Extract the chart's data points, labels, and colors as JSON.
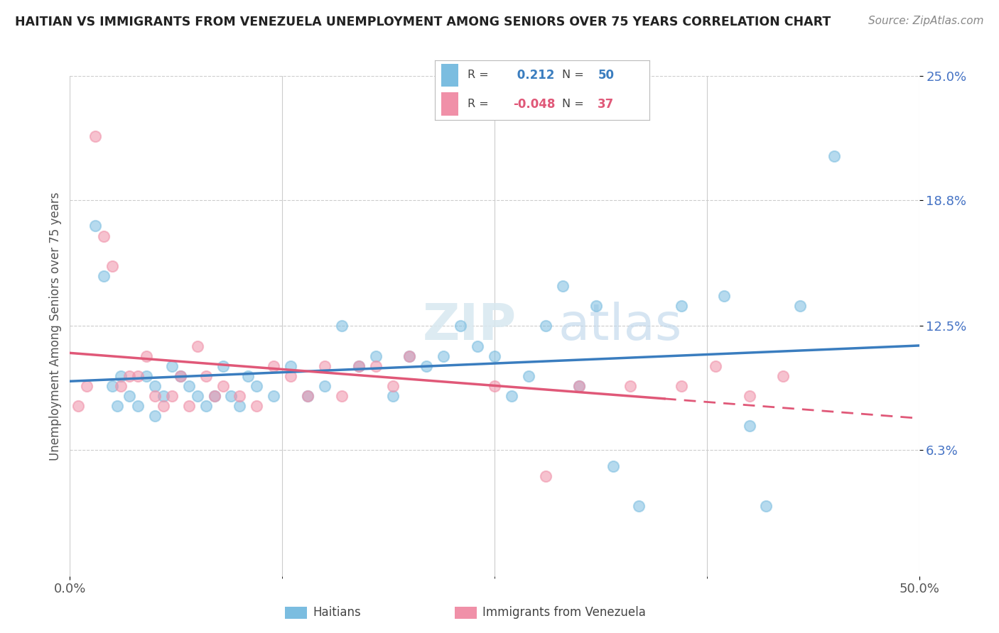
{
  "title": "HAITIAN VS IMMIGRANTS FROM VENEZUELA UNEMPLOYMENT AMONG SENIORS OVER 75 YEARS CORRELATION CHART",
  "source": "Source: ZipAtlas.com",
  "ylabel": "Unemployment Among Seniors over 75 years",
  "xlim": [
    0.0,
    50.0
  ],
  "ylim": [
    0.0,
    25.0
  ],
  "yticks": [
    6.3,
    12.5,
    18.8,
    25.0
  ],
  "ytick_labels": [
    "6.3%",
    "12.5%",
    "18.8%",
    "25.0%"
  ],
  "xticks": [
    0.0,
    50.0
  ],
  "xtick_labels": [
    "0.0%",
    "50.0%"
  ],
  "haitians_R": 0.212,
  "haitians_N": 50,
  "venezuela_R": -0.048,
  "venezuela_N": 37,
  "color_haitians": "#7bbde0",
  "color_venezuela": "#f090a8",
  "trend_color_haitians": "#3a7dbf",
  "trend_color_venezuela": "#e05878",
  "watermark": "ZIPatlas",
  "haitians_x": [
    1.5,
    2.0,
    2.5,
    2.8,
    3.0,
    3.5,
    4.0,
    4.5,
    5.0,
    5.0,
    5.5,
    6.0,
    6.5,
    7.0,
    7.5,
    8.0,
    8.5,
    9.0,
    9.5,
    10.0,
    10.5,
    11.0,
    12.0,
    13.0,
    14.0,
    15.0,
    16.0,
    17.0,
    18.0,
    19.0,
    20.0,
    21.0,
    22.0,
    23.0,
    24.0,
    25.0,
    26.0,
    27.0,
    28.0,
    29.0,
    30.0,
    31.0,
    32.0,
    33.5,
    36.0,
    38.5,
    40.0,
    41.0,
    43.0,
    45.0
  ],
  "haitians_y": [
    17.5,
    15.0,
    9.5,
    8.5,
    10.0,
    9.0,
    8.5,
    10.0,
    9.5,
    8.0,
    9.0,
    10.5,
    10.0,
    9.5,
    9.0,
    8.5,
    9.0,
    10.5,
    9.0,
    8.5,
    10.0,
    9.5,
    9.0,
    10.5,
    9.0,
    9.5,
    12.5,
    10.5,
    11.0,
    9.0,
    11.0,
    10.5,
    11.0,
    12.5,
    11.5,
    11.0,
    9.0,
    10.0,
    12.5,
    14.5,
    9.5,
    13.5,
    5.5,
    3.5,
    13.5,
    14.0,
    7.5,
    3.5,
    13.5,
    21.0
  ],
  "venezuela_x": [
    0.5,
    1.0,
    1.5,
    2.0,
    2.5,
    3.0,
    3.5,
    4.0,
    4.5,
    5.0,
    5.5,
    6.0,
    6.5,
    7.0,
    7.5,
    8.0,
    8.5,
    9.0,
    10.0,
    11.0,
    12.0,
    13.0,
    14.0,
    15.0,
    16.0,
    17.0,
    18.0,
    19.0,
    20.0,
    25.0,
    28.0,
    30.0,
    33.0,
    36.0,
    38.0,
    40.0,
    42.0
  ],
  "venezuela_y": [
    8.5,
    9.5,
    22.0,
    17.0,
    15.5,
    9.5,
    10.0,
    10.0,
    11.0,
    9.0,
    8.5,
    9.0,
    10.0,
    8.5,
    11.5,
    10.0,
    9.0,
    9.5,
    9.0,
    8.5,
    10.5,
    10.0,
    9.0,
    10.5,
    9.0,
    10.5,
    10.5,
    9.5,
    11.0,
    9.5,
    5.0,
    9.5,
    9.5,
    9.5,
    10.5,
    9.0,
    10.0
  ],
  "trend_solid_end_x": 35.0
}
